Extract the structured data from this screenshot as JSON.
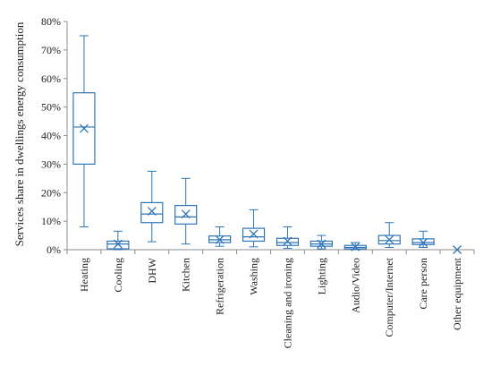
{
  "chart_data": {
    "type": "boxplot",
    "title": "",
    "ylabel": "Services share in dwellings energy consumption",
    "xlabel": "",
    "ylim": [
      0,
      80
    ],
    "y_unit": "%",
    "yticks": [
      0,
      10,
      20,
      30,
      40,
      50,
      60,
      70,
      80
    ],
    "ytick_labels": [
      "0%",
      "10%",
      "20%",
      "30%",
      "40%",
      "50%",
      "60%",
      "70%",
      "80%"
    ],
    "grid": false,
    "color": "#2E75B6",
    "categories": [
      "Heating",
      "Cooling",
      "DHW",
      "Kitchen",
      "Refrigeration",
      "Washing",
      "Cleaning and ironing",
      "Lighting",
      "Audio/Video",
      "Computer/Internet",
      "Care person",
      "Other equipment"
    ],
    "boxes": [
      {
        "min": 8.0,
        "q1": 30.0,
        "median": 43.0,
        "q3": 55.0,
        "max": 75.0,
        "mean": 42.5
      },
      {
        "min": 0.0,
        "q1": 0.3,
        "median": 2.0,
        "q3": 3.0,
        "max": 6.5,
        "mean": 2.0
      },
      {
        "min": 2.8,
        "q1": 9.5,
        "median": 12.5,
        "q3": 16.5,
        "max": 27.5,
        "mean": 13.5
      },
      {
        "min": 2.0,
        "q1": 9.0,
        "median": 11.5,
        "q3": 15.5,
        "max": 25.0,
        "mean": 12.5
      },
      {
        "min": 1.2,
        "q1": 2.5,
        "median": 3.5,
        "q3": 4.8,
        "max": 8.0,
        "mean": 3.5
      },
      {
        "min": 1.0,
        "q1": 3.0,
        "median": 4.5,
        "q3": 7.5,
        "max": 14.0,
        "mean": 5.5
      },
      {
        "min": 0.5,
        "q1": 1.5,
        "median": 2.5,
        "q3": 4.0,
        "max": 8.0,
        "mean": 3.0
      },
      {
        "min": 0.3,
        "q1": 1.2,
        "median": 2.0,
        "q3": 3.0,
        "max": 5.0,
        "mean": 2.0
      },
      {
        "min": 0.0,
        "q1": 0.3,
        "median": 0.8,
        "q3": 1.5,
        "max": 2.5,
        "mean": 1.0
      },
      {
        "min": 0.8,
        "q1": 2.0,
        "median": 3.2,
        "q3": 5.0,
        "max": 9.5,
        "mean": 3.5
      },
      {
        "min": 0.8,
        "q1": 1.8,
        "median": 2.5,
        "q3": 3.8,
        "max": 6.5,
        "mean": 2.5
      },
      {
        "min": 0.0,
        "q1": 0.0,
        "median": 0.0,
        "q3": 0.0,
        "max": 0.0,
        "mean": 0.0
      }
    ]
  }
}
